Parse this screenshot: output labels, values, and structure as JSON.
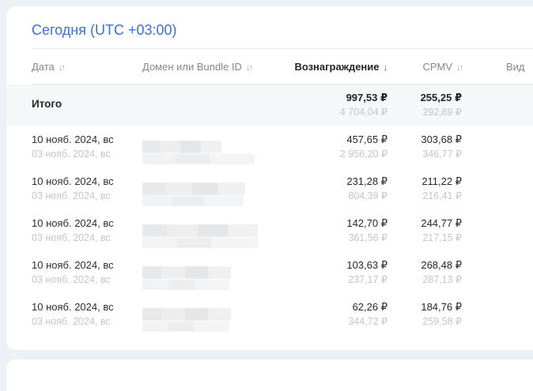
{
  "card": {
    "title": "Сегодня (UTC +03:00)"
  },
  "table": {
    "header": {
      "date": "Дата",
      "domain": "Домен или Bundle ID",
      "reward": "Вознаграждение",
      "cpmv": "CPMV",
      "views": "Вид",
      "sort_both": "↓↑",
      "sort_desc": "↓"
    },
    "totals": {
      "label": "Итого",
      "reward": "997,53 ₽",
      "reward_secondary": "4 704,04 ₽",
      "cpmv": "255,25 ₽",
      "cpmv_secondary": "292,89 ₽"
    },
    "rows": [
      {
        "date": "10 нояб. 2024, вс",
        "date_secondary": "03 нояб. 2024, вс",
        "reward": "457,65 ₽",
        "reward_secondary": "2 956,20 ₽",
        "cpmv": "303,68 ₽",
        "cpmv_secondary": "346,77 ₽"
      },
      {
        "date": "10 нояб. 2024, вс",
        "date_secondary": "03 нояб. 2024, вс",
        "reward": "231,28 ₽",
        "reward_secondary": "804,39 ₽",
        "cpmv": "211,22 ₽",
        "cpmv_secondary": "216,41 ₽"
      },
      {
        "date": "10 нояб. 2024, вс",
        "date_secondary": "03 нояб. 2024, вс",
        "reward": "142,70 ₽",
        "reward_secondary": "361,56 ₽",
        "cpmv": "244,77 ₽",
        "cpmv_secondary": "217,15 ₽"
      },
      {
        "date": "10 нояб. 2024, вс",
        "date_secondary": "03 нояб. 2024, вс",
        "reward": "103,63 ₽",
        "reward_secondary": "237,17 ₽",
        "cpmv": "268,48 ₽",
        "cpmv_secondary": "287,13 ₽"
      },
      {
        "date": "10 нояб. 2024, вс",
        "date_secondary": "03 нояб. 2024, вс",
        "reward": "62,26 ₽",
        "reward_secondary": "344,72 ₽",
        "cpmv": "184,76 ₽",
        "cpmv_secondary": "259,58 ₽"
      }
    ]
  },
  "colors": {
    "accent_blue": "#3a6fe0",
    "page_bg": "#edf1f7",
    "totals_bg": "#f6f7f9"
  }
}
